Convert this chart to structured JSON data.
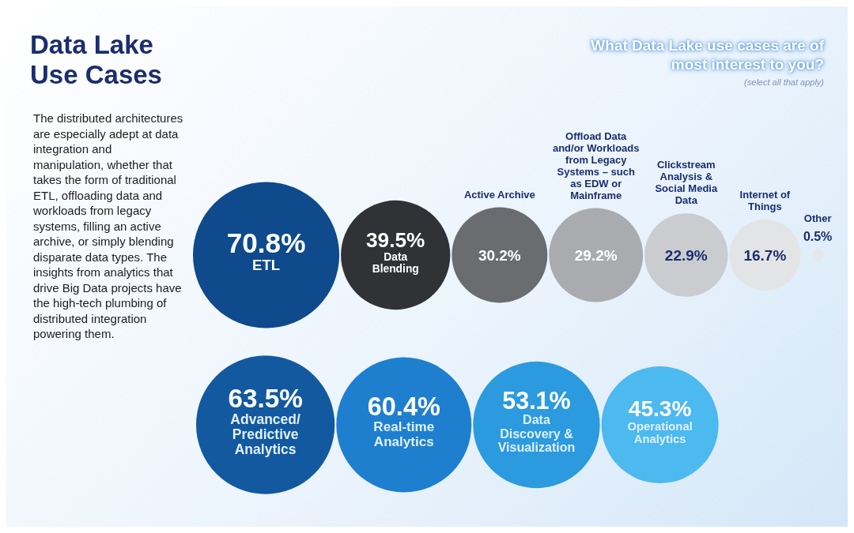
{
  "chart_data": {
    "type": "other",
    "title": "Data Lake Use Cases",
    "subtitle": "What Data Lake use cases are of most interest to you?",
    "annotations": [
      "(select all that apply)",
      "The distributed architectures are especially adept at data integration and manipulation, whether that takes the form of traditional ETL, offloading data and workloads from legacy systems, filling an active archive, or simply blending disparate data types. The insights from analytics that drive Big Data projects have the high-tech plumbing of distributed integration powering them."
    ],
    "categories": [
      "ETL",
      "Data Blending",
      "Active Archive",
      "Offload Data and/or Workloads from Legacy Systems – such as EDW or Mainframe",
      "Clickstream Analysis & Social Media Data",
      "Internet of Things",
      "Other",
      "Advanced/ Predictive Analytics",
      "Real-time Analytics",
      "Data Discovery & Visualization",
      "Operational Analytics"
    ],
    "values": [
      70.8,
      39.5,
      30.2,
      29.2,
      22.9,
      16.7,
      0.5,
      63.5,
      60.4,
      53.1,
      45.3
    ],
    "value_labels": [
      "70.8%",
      "39.5%",
      "30.2%",
      "29.2%",
      "22.9%",
      "16.7%",
      "0.5%",
      "63.5%",
      "60.4%",
      "53.1%",
      "45.3%"
    ],
    "colors": [
      "#0e4a8c",
      "#303236",
      "#6a6c70",
      "#a9abae",
      "#cbcccf",
      "#e3e4e6",
      "#e6e7ea",
      "#12599f",
      "#1f7fcf",
      "#2b9ade",
      "#4cb9ef"
    ]
  }
}
